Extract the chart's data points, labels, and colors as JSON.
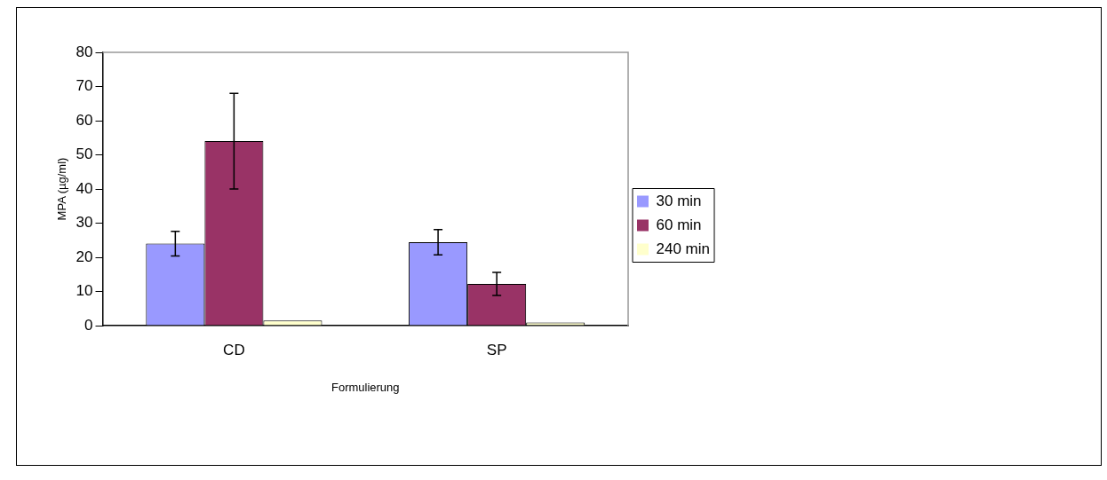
{
  "chart_data": {
    "type": "bar",
    "xlabel": "Formulierung",
    "ylabel": "MPA (µg/ml)",
    "categories": [
      "CD",
      "SP"
    ],
    "series": [
      {
        "name": "30 min",
        "color": "#9999ff",
        "values": [
          24,
          24.4
        ],
        "errors": [
          3.6,
          3.7
        ]
      },
      {
        "name": "60 min",
        "color": "#993366",
        "values": [
          54,
          12.2
        ],
        "errors": [
          14,
          3.4
        ]
      },
      {
        "name": "240 min",
        "color": "#ffffcc",
        "values": [
          1.5,
          0.9
        ]
      }
    ],
    "ylim": [
      0,
      80
    ],
    "yticks": [
      0,
      10,
      20,
      30,
      40,
      50,
      60,
      70,
      80
    ],
    "grid": false,
    "legend": "right"
  }
}
